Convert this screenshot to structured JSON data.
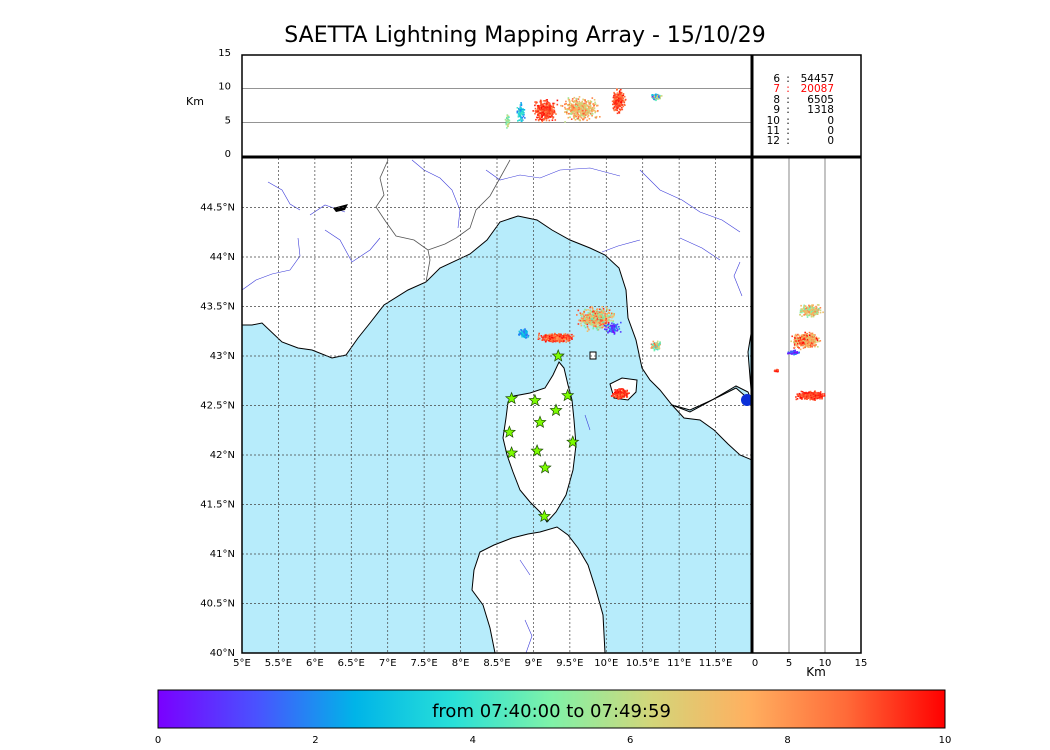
{
  "title": "SAETTA Lightning Mapping Array - 15/10/29",
  "colors": {
    "sea": "#b7ecfb",
    "land": "#ffffff",
    "rivers": "#3d3dd9",
    "borders": "#555555",
    "station": "#7cfc00",
    "radar_blob": "#0a2fd8",
    "highlight_text": "#ff0000"
  },
  "top_panel": {
    "y_label": "Km",
    "y_ticks": [
      "0",
      "5",
      "10",
      "15"
    ],
    "gridlines_km": [
      5,
      10
    ]
  },
  "right_panel": {
    "x_label": "Km",
    "x_ticks": [
      "0",
      "5",
      "10",
      "15"
    ],
    "gridlines_km": [
      5,
      10
    ]
  },
  "map": {
    "lon_ticks": [
      "5°E",
      "5.5°E",
      "6°E",
      "6.5°E",
      "7°E",
      "7.5°E",
      "8°E",
      "8.5°E",
      "9°E",
      "9.5°E",
      "10°E",
      "10.5°E",
      "11°E",
      "11.5°E"
    ],
    "lat_ticks": [
      "40°N",
      "40.5°N",
      "41°N",
      "41.5°N",
      "42°N",
      "42.5°N",
      "43°N",
      "43.5°N",
      "44°N",
      "44.5°N"
    ],
    "lon_range": [
      5,
      12
    ],
    "lat_range": [
      40,
      45
    ],
    "grid": "dotted",
    "stations": [
      [
        8.7,
        42.57
      ],
      [
        9.02,
        42.55
      ],
      [
        9.47,
        42.6
      ],
      [
        9.31,
        42.45
      ],
      [
        9.09,
        42.33
      ],
      [
        8.67,
        42.23
      ],
      [
        8.7,
        42.02
      ],
      [
        9.05,
        42.04
      ],
      [
        9.54,
        42.13
      ],
      [
        9.16,
        41.87
      ],
      [
        9.15,
        41.38
      ],
      [
        9.34,
        43.0
      ]
    ]
  },
  "counts": [
    {
      "hour": "6",
      "sep": ":",
      "count": "54457",
      "highlight": false
    },
    {
      "hour": "7",
      "sep": ":",
      "count": "20087",
      "highlight": true
    },
    {
      "hour": "8",
      "sep": ":",
      "count": "6505",
      "highlight": false
    },
    {
      "hour": "9",
      "sep": ":",
      "count": "1318",
      "highlight": false
    },
    {
      "hour": "10",
      "sep": ":",
      "count": "0",
      "highlight": false
    },
    {
      "hour": "11",
      "sep": ":",
      "count": "0",
      "highlight": false
    },
    {
      "hour": "12",
      "sep": ":",
      "count": "0",
      "highlight": false
    }
  ],
  "colorbar": {
    "range_text": "from 07:40:00 to 07:49:59",
    "ticks": [
      "0",
      "2",
      "4",
      "6",
      "8",
      "10"
    ],
    "stops": [
      "#7a00ff",
      "#4a52ff",
      "#00b4e8",
      "#28e0d8",
      "#7ff2a8",
      "#d2d67a",
      "#ffb060",
      "#ff6a38",
      "#ff0000"
    ]
  }
}
